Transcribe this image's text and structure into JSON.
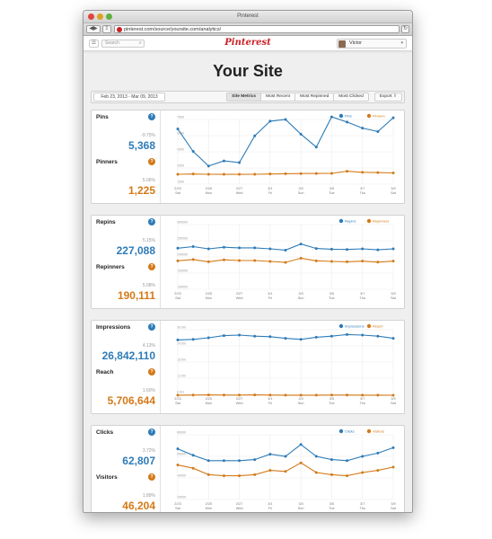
{
  "window": {
    "title": "Pinterest",
    "url": "pinterest.com/source/yoursite.com/analytics/"
  },
  "header": {
    "logo": "Pinterest",
    "search_placeholder": "Search",
    "user_name": "Victor"
  },
  "page": {
    "title": "Your Site"
  },
  "toolbar": {
    "date_range": "Feb 23, 2013 - Mar 09, 2013",
    "tabs": [
      {
        "label": "Site Metrics",
        "active": true
      },
      {
        "label": "Most Recent",
        "active": false
      },
      {
        "label": "Most Repinned",
        "active": false
      },
      {
        "label": "Most Clicked",
        "active": false
      }
    ],
    "export_label": "Export"
  },
  "colors": {
    "blue": "#2e7bb7",
    "orange": "#d37a19"
  },
  "x_ticks": [
    {
      "date": "2/23",
      "day": "Sat"
    },
    {
      "date": "2/25",
      "day": "Mon"
    },
    {
      "date": "2/27",
      "day": "Wed"
    },
    {
      "date": "3/1",
      "day": "Fri"
    },
    {
      "date": "3/3",
      "day": "Sun"
    },
    {
      "date": "3/5",
      "day": "Tue"
    },
    {
      "date": "3/7",
      "day": "Thu"
    },
    {
      "date": "3/9",
      "day": "Sat"
    }
  ],
  "panels": [
    {
      "primary": {
        "label": "Pins",
        "pct": "-9.75%",
        "value": "5,368"
      },
      "secondary": {
        "label": "Pinners",
        "pct": "5.06%",
        "value": "1,225"
      }
    },
    {
      "primary": {
        "label": "Repins",
        "pct": "5.15%",
        "value": "227,088"
      },
      "secondary": {
        "label": "Repinners",
        "pct": "5.08%",
        "value": "190,111"
      }
    },
    {
      "primary": {
        "label": "Impressions",
        "pct": "4.13%",
        "value": "26,842,110"
      },
      "secondary": {
        "label": "Reach",
        "pct": "1.60%",
        "value": "5,706,644"
      }
    },
    {
      "primary": {
        "label": "Clicks",
        "pct": "3.72%",
        "value": "62,807"
      },
      "secondary": {
        "label": "Visitors",
        "pct": "1.89%",
        "value": "46,204"
      }
    }
  ],
  "chart_data": [
    {
      "type": "line",
      "x": [
        "2/23",
        "2/24",
        "2/25",
        "2/26",
        "2/27",
        "2/28",
        "3/1",
        "3/2",
        "3/3",
        "3/4",
        "3/5",
        "3/6",
        "3/7",
        "3/8",
        "3/9"
      ],
      "yticks": [
        7500,
        6000,
        4500,
        3000,
        1500
      ],
      "ylim": [
        0,
        7500
      ],
      "legend": "top-right",
      "series": [
        {
          "name": "Pins",
          "color": "#2e7bb7",
          "values": [
            6400,
            3800,
            2100,
            2700,
            2500,
            5600,
            7300,
            7500,
            5800,
            4300,
            7800,
            7200,
            6500,
            6100,
            7700
          ]
        },
        {
          "name": "Pinners",
          "color": "#d37a19",
          "values": [
            1150,
            1180,
            1150,
            1140,
            1140,
            1150,
            1180,
            1210,
            1230,
            1240,
            1250,
            1500,
            1380,
            1340,
            1300
          ]
        }
      ]
    },
    {
      "type": "line",
      "x": [
        "2/23",
        "2/24",
        "2/25",
        "2/26",
        "2/27",
        "2/28",
        "3/1",
        "3/2",
        "3/3",
        "3/4",
        "3/5",
        "3/6",
        "3/7",
        "3/8",
        "3/9"
      ],
      "yticks": [
        300000,
        250000,
        200000,
        150000,
        100000
      ],
      "ylim": [
        100000,
        300000
      ],
      "legend": "top-right",
      "series": [
        {
          "name": "Repins",
          "color": "#2e7bb7",
          "values": [
            227000,
            232000,
            225000,
            230000,
            228000,
            228000,
            225000,
            221000,
            240000,
            226000,
            224000,
            223000,
            225000,
            222000,
            225000
          ]
        },
        {
          "name": "Repinners",
          "color": "#d37a19",
          "values": [
            188000,
            192000,
            185000,
            191000,
            189000,
            189000,
            186000,
            183000,
            196000,
            188000,
            186000,
            185000,
            187000,
            184000,
            187000
          ]
        }
      ]
    },
    {
      "type": "line",
      "x": [
        "2/23",
        "2/24",
        "2/25",
        "2/26",
        "2/27",
        "2/28",
        "3/1",
        "3/2",
        "3/3",
        "3/4",
        "3/5",
        "3/6",
        "3/7",
        "3/8",
        "3/9"
      ],
      "yticks": [
        "30.0m",
        "24.0m",
        "18.0m",
        "12.0m",
        "6.0m"
      ],
      "ylim": [
        6000000,
        30000000
      ],
      "legend": "top-right",
      "series": [
        {
          "name": "Impressions",
          "color": "#2e7bb7",
          "values": [
            26200000,
            26400000,
            27000000,
            27800000,
            28000000,
            27600000,
            27400000,
            26800000,
            26400000,
            27200000,
            27600000,
            28200000,
            28000000,
            27600000,
            26800000
          ]
        },
        {
          "name": "Reach",
          "color": "#d37a19",
          "values": [
            5700000,
            5750000,
            5800000,
            5750000,
            5750000,
            5800000,
            5750000,
            5700000,
            5700000,
            5700000,
            5750000,
            5750000,
            5700000,
            5700000,
            5650000
          ]
        }
      ]
    },
    {
      "type": "line",
      "x": [
        "2/23",
        "2/24",
        "2/25",
        "2/26",
        "2/27",
        "2/28",
        "3/1",
        "3/2",
        "3/3",
        "3/4",
        "3/5",
        "3/6",
        "3/7",
        "3/8",
        "3/9"
      ],
      "yticks": [
        80000,
        60000,
        40000,
        20000
      ],
      "ylim": [
        20000,
        80000
      ],
      "legend": "top-right",
      "series": [
        {
          "name": "Clicks",
          "color": "#2e7bb7",
          "values": [
            67000,
            61000,
            56000,
            56000,
            56000,
            57000,
            62000,
            60000,
            71000,
            60000,
            57000,
            56000,
            60000,
            63000,
            68000
          ]
        },
        {
          "name": "Visitors",
          "color": "#d37a19",
          "values": [
            52000,
            49000,
            43000,
            42000,
            42000,
            43000,
            47000,
            46000,
            54000,
            45000,
            43000,
            42000,
            45000,
            47000,
            50000
          ]
        }
      ]
    }
  ]
}
